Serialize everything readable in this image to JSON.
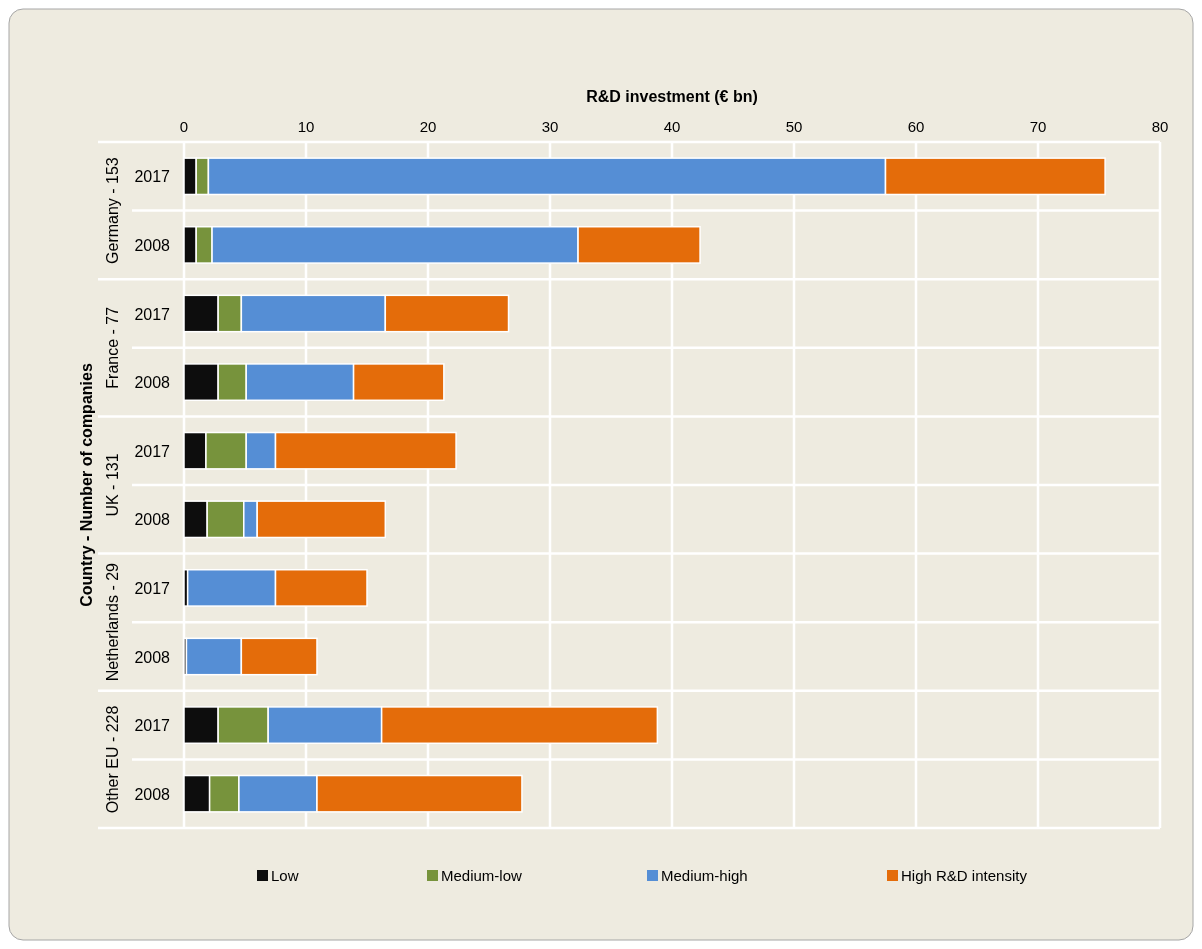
{
  "chart_data": {
    "type": "bar",
    "orientation": "horizontal",
    "stacked": true,
    "xlabel": "R&D investment (€ bn)",
    "ylabel": "Country - Number of companies",
    "categories": [
      "2017",
      "2008",
      "2017",
      "2008",
      "2017",
      "2008",
      "2017",
      "2008",
      "2017",
      "2008"
    ],
    "annotations": [
      "Germany - 153",
      "France - 77",
      "UK - 131",
      "Netherlands - 29",
      "Other EU - 228"
    ],
    "series": [
      {
        "name": "Low",
        "color": "#0d0d0d",
        "values": [
          1.0,
          1.0,
          2.8,
          2.8,
          1.8,
          1.9,
          0.3,
          0.2,
          2.8,
          2.1
        ]
      },
      {
        "name": "Medium-low",
        "color": "#77933c",
        "values": [
          1.0,
          1.3,
          1.9,
          2.3,
          3.3,
          3.0,
          0,
          0,
          4.1,
          2.4
        ]
      },
      {
        "name": "Medium-high",
        "color": "#558ed5",
        "values": [
          55.5,
          30.0,
          11.8,
          8.8,
          2.4,
          1.1,
          7.2,
          4.5,
          9.3,
          6.4
        ]
      },
      {
        "name": "High R&D intensity",
        "color": "#e46c0a",
        "values": [
          18.0,
          10.0,
          10.1,
          7.4,
          14.8,
          10.5,
          7.5,
          6.2,
          22.6,
          16.8
        ]
      }
    ],
    "xlim": [
      0,
      80
    ],
    "xticks": [
      0,
      10,
      20,
      30,
      40,
      50,
      60,
      70,
      80
    ],
    "grid": true,
    "legend": "bottom"
  }
}
